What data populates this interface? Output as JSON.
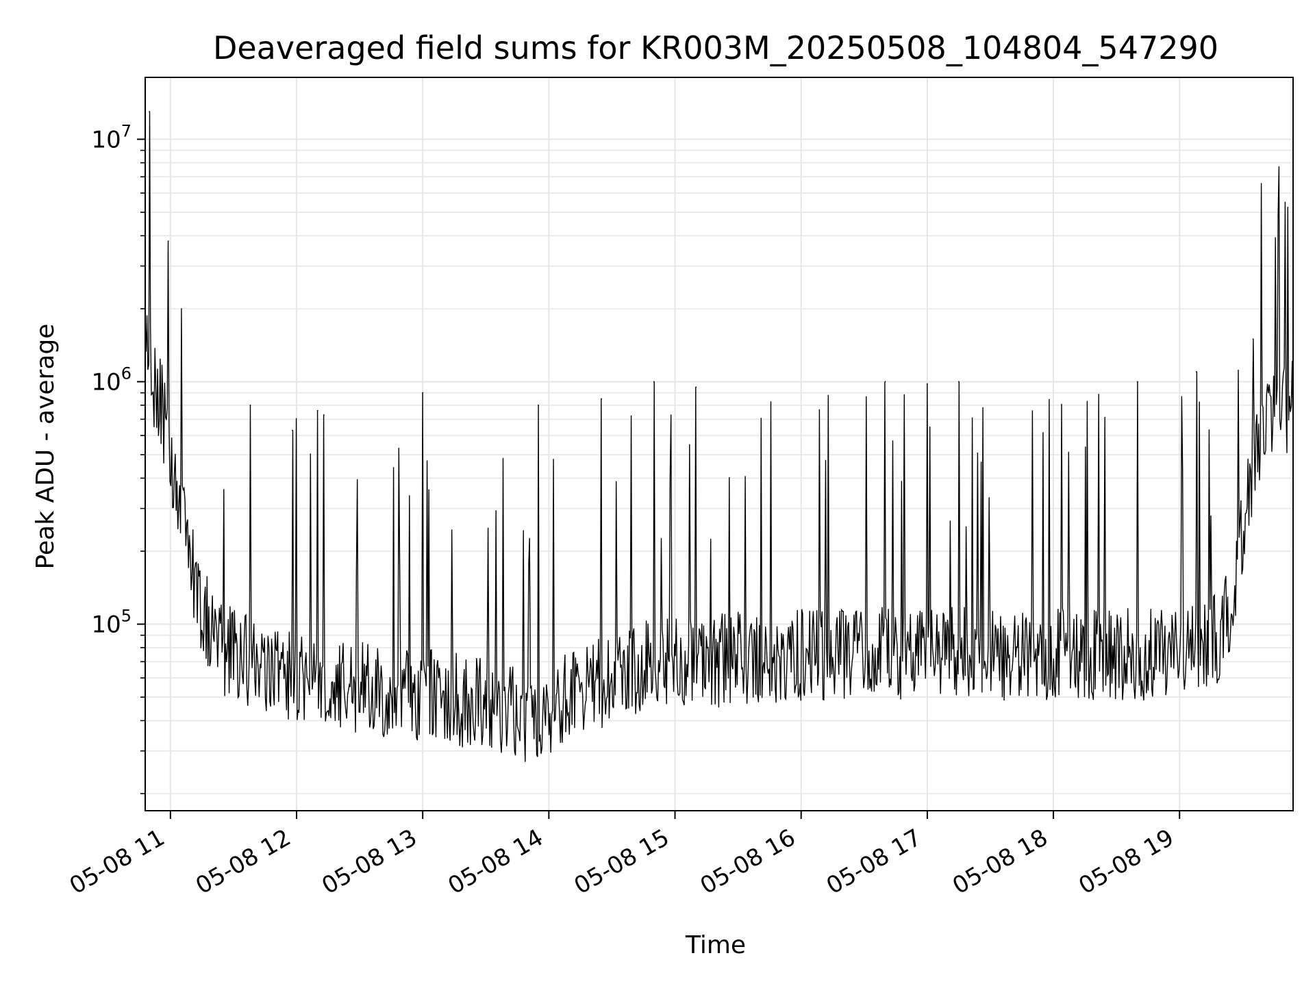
{
  "chart_data": {
    "type": "line",
    "title": "Deaveraged field sums for KR003M_20250508_104804_547290",
    "xlabel": "Time",
    "ylabel": "Peak ADU - average",
    "yscale": "log",
    "xlim": [
      "2025-05-08 10:48",
      "2025-05-08 19:54"
    ],
    "ylim": [
      17000,
      18000000
    ],
    "grid": true,
    "line_color": "#000000",
    "grid_color": "#e6e6e6",
    "x_ticks": [
      {
        "time": "2025-05-08 11:00",
        "label": "05-08 11"
      },
      {
        "time": "2025-05-08 12:00",
        "label": "05-08 12"
      },
      {
        "time": "2025-05-08 13:00",
        "label": "05-08 13"
      },
      {
        "time": "2025-05-08 14:00",
        "label": "05-08 14"
      },
      {
        "time": "2025-05-08 15:00",
        "label": "05-08 15"
      },
      {
        "time": "2025-05-08 16:00",
        "label": "05-08 16"
      },
      {
        "time": "2025-05-08 17:00",
        "label": "05-08 17"
      },
      {
        "time": "2025-05-08 18:00",
        "label": "05-08 18"
      },
      {
        "time": "2025-05-08 19:00",
        "label": "05-08 19"
      }
    ],
    "y_ticks": [
      {
        "value": 100000,
        "base": "10",
        "exp": "5"
      },
      {
        "value": 1000000,
        "base": "10",
        "exp": "6"
      },
      {
        "value": 10000000,
        "base": "10",
        "exp": "7"
      }
    ],
    "series": [
      {
        "x": [
          "2025-05-08 10:48",
          "2025-05-08 10:50",
          "2025-05-08 10:52",
          "2025-05-08 10:54",
          "2025-05-08 10:56",
          "2025-05-08 10:58",
          "2025-05-08 11:00",
          "2025-05-08 11:02",
          "2025-05-08 11:05",
          "2025-05-08 11:08",
          "2025-05-08 11:12",
          "2025-05-08 11:16",
          "2025-05-08 11:20",
          "2025-05-08 11:25",
          "2025-05-08 11:30",
          "2025-05-08 11:35",
          "2025-05-08 11:40",
          "2025-05-08 11:45",
          "2025-05-08 11:50",
          "2025-05-08 11:55",
          "2025-05-08 12:00",
          "2025-05-08 12:10",
          "2025-05-08 12:20",
          "2025-05-08 12:30",
          "2025-05-08 12:40",
          "2025-05-08 12:50",
          "2025-05-08 13:00",
          "2025-05-08 13:10",
          "2025-05-08 13:20",
          "2025-05-08 13:30",
          "2025-05-08 13:40",
          "2025-05-08 13:50",
          "2025-05-08 14:00",
          "2025-05-08 14:10",
          "2025-05-08 14:20",
          "2025-05-08 14:30",
          "2025-05-08 14:40",
          "2025-05-08 14:50",
          "2025-05-08 15:00",
          "2025-05-08 15:15",
          "2025-05-08 15:30",
          "2025-05-08 15:45",
          "2025-05-08 16:00",
          "2025-05-08 16:15",
          "2025-05-08 16:30",
          "2025-05-08 16:45",
          "2025-05-08 17:00",
          "2025-05-08 17:15",
          "2025-05-08 17:30",
          "2025-05-08 17:45",
          "2025-05-08 18:00",
          "2025-05-08 18:15",
          "2025-05-08 18:30",
          "2025-05-08 18:45",
          "2025-05-08 19:00",
          "2025-05-08 19:10",
          "2025-05-08 19:20",
          "2025-05-08 19:25",
          "2025-05-08 19:30",
          "2025-05-08 19:35",
          "2025-05-08 19:40",
          "2025-05-08 19:45",
          "2025-05-08 19:50",
          "2025-05-08 19:54"
        ],
        "y": [
          2000000,
          1200000,
          1000000,
          900000,
          800000,
          600000,
          500000,
          400000,
          300000,
          200000,
          150000,
          110000,
          90000,
          80000,
          75000,
          70000,
          68000,
          65000,
          60000,
          60000,
          60000,
          58000,
          55000,
          55000,
          52000,
          50000,
          50000,
          50000,
          48000,
          46000,
          44000,
          42000,
          45000,
          50000,
          55000,
          60000,
          65000,
          68000,
          70000,
          70000,
          72000,
          72000,
          75000,
          75000,
          75000,
          75000,
          75000,
          75000,
          75000,
          75000,
          75000,
          75000,
          75000,
          75000,
          78000,
          80000,
          90000,
          120000,
          250000,
          450000,
          600000,
          700000,
          750000,
          850000
        ],
        "spikes": [
          {
            "x": "2025-05-08 10:50",
            "y": 13000000
          },
          {
            "x": "2025-05-08 10:59",
            "y": 3800000
          },
          {
            "x": "2025-05-08 11:38",
            "y": 800000
          },
          {
            "x": "2025-05-08 11:58",
            "y": 630000
          },
          {
            "x": "2025-05-08 12:10",
            "y": 760000
          },
          {
            "x": "2025-05-08 12:13",
            "y": 730000
          },
          {
            "x": "2025-05-08 13:00",
            "y": 900000
          },
          {
            "x": "2025-05-08 13:55",
            "y": 800000
          },
          {
            "x": "2025-05-08 14:25",
            "y": 850000
          },
          {
            "x": "2025-05-08 14:50",
            "y": 1000000
          },
          {
            "x": "2025-05-08 15:10",
            "y": 950000
          },
          {
            "x": "2025-05-08 16:40",
            "y": 1000000
          },
          {
            "x": "2025-05-08 17:00",
            "y": 980000
          },
          {
            "x": "2025-05-08 17:15",
            "y": 1000000
          },
          {
            "x": "2025-05-08 18:40",
            "y": 1000000
          },
          {
            "x": "2025-05-08 19:08",
            "y": 1100000
          },
          {
            "x": "2025-05-08 19:35",
            "y": 1500000
          },
          {
            "x": "2025-05-08 19:47",
            "y": 4800000
          }
        ]
      }
    ]
  }
}
